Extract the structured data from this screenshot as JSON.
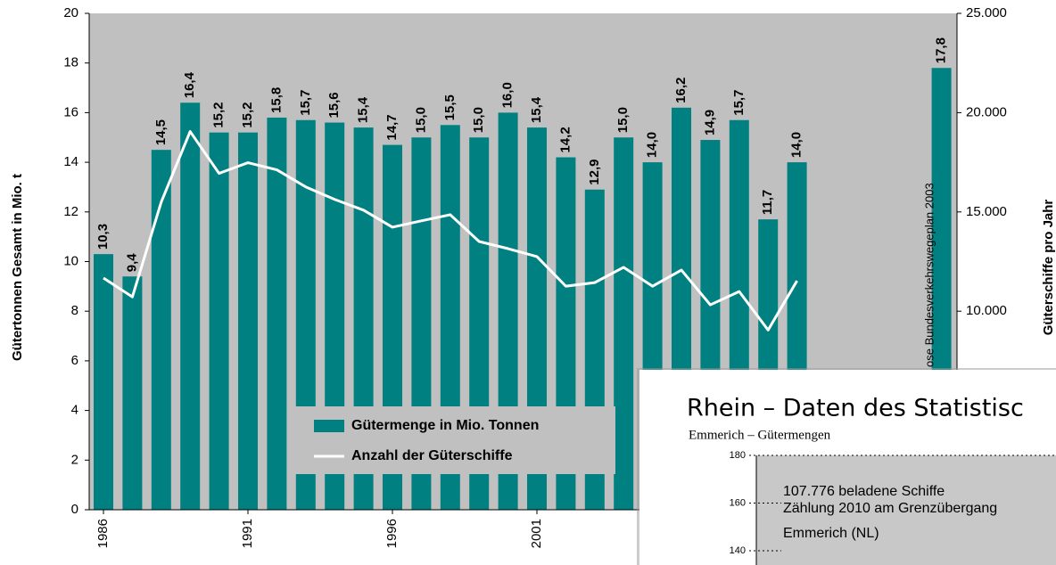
{
  "chart_data": [
    {
      "type": "bar",
      "y_label": "Gütertonnen Gesamt in Mio. t",
      "y2_label": "Güterschiffe pro Jahr",
      "annotation": "ose Bundesverkehrswegeplan 2003",
      "categories": [
        "1986",
        null,
        null,
        null,
        null,
        "1991",
        null,
        null,
        null,
        null,
        "1996",
        null,
        null,
        null,
        null,
        "2001",
        null,
        null,
        null,
        null,
        null,
        null,
        null,
        null,
        null,
        null,
        null,
        null,
        null,
        null
      ],
      "series": [
        {
          "name": "Gütermenge in Mio. Tonnen",
          "color": "#008080",
          "values": [
            10.3,
            9.4,
            14.5,
            16.4,
            15.2,
            15.2,
            15.8,
            15.7,
            15.6,
            15.4,
            14.7,
            15.0,
            15.5,
            15.0,
            16.0,
            15.4,
            14.2,
            12.9,
            15.0,
            14.0,
            16.2,
            14.9,
            15.7,
            11.7,
            14.0,
            null,
            null,
            null,
            null,
            17.8
          ],
          "value_labels": [
            "10,3",
            "9,4",
            "14,5",
            "16,4",
            "15,2",
            "15,2",
            "15,8",
            "15,7",
            "15,6",
            "15,4",
            "14,7",
            "15,0",
            "15,5",
            "15,0",
            "16,0",
            "15,4",
            "14,2",
            "12,9",
            "15,0",
            "14,0",
            "16,2",
            "14,9",
            "15,7",
            "11,7",
            "14,0",
            null,
            null,
            null,
            null,
            "17,8"
          ]
        },
        {
          "name": "Anzahl der Güterschiffe",
          "color": "#ffffff",
          "type": "line",
          "axis": "y2",
          "values": [
            11670,
            10720,
            15500,
            19050,
            16940,
            17480,
            17120,
            16260,
            15630,
            15090,
            14230,
            14550,
            14860,
            13510,
            13150,
            12750,
            11260,
            11440,
            12210,
            11260,
            12070,
            10320,
            10990,
            9050,
            11530,
            null,
            null,
            null,
            null,
            null
          ]
        }
      ],
      "ylim": [
        0,
        20
      ],
      "yticks": [
        0,
        2,
        4,
        6,
        8,
        10,
        12,
        14,
        16,
        18,
        20
      ],
      "y2lim": [
        0,
        25000
      ],
      "y2ticks": [
        {
          "value": 10000,
          "label": "10.000"
        },
        {
          "value": 15000,
          "label": "15.000"
        },
        {
          "value": 20000,
          "label": "20.000"
        },
        {
          "value": 25000,
          "label": "25.000"
        }
      ],
      "background": "#c0c0c0"
    },
    {
      "type": "bar",
      "title": "Rhein – Daten des Statistisc",
      "subtitle": "Emmerich – Gütermengen",
      "ylim": [
        134,
        180
      ],
      "yticks": [
        140,
        160,
        180
      ],
      "annotations": [
        "107.776 beladene Schiffe",
        "Zählung 2010 am Grenzübergang",
        "Emmerich (NL)"
      ],
      "background": "#c8c8c8"
    }
  ]
}
